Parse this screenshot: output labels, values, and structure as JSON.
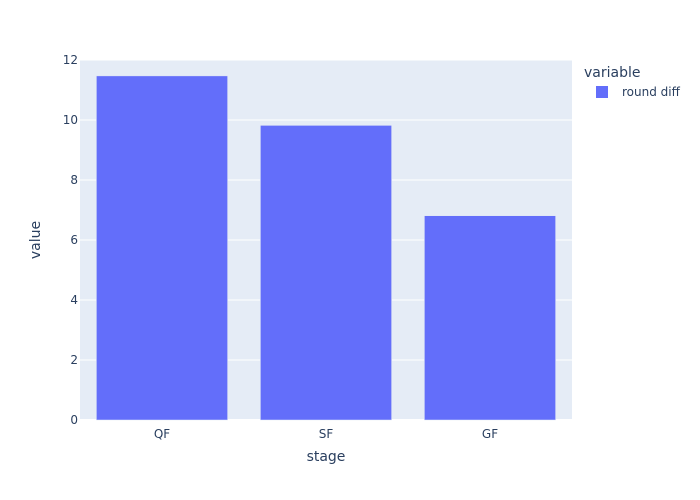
{
  "chart_data": {
    "type": "bar",
    "title": "",
    "xlabel": "stage",
    "ylabel": "value",
    "categories": [
      "QF",
      "SF",
      "GF"
    ],
    "series": [
      {
        "name": "round diff",
        "values": [
          11.47,
          9.82,
          6.81
        ],
        "color": "#636efa"
      }
    ],
    "ylim": [
      0,
      12
    ],
    "yticks": [
      0,
      2,
      4,
      6,
      8,
      10,
      12
    ],
    "grid": true,
    "legend": {
      "title": "variable",
      "position": "top-right"
    },
    "colors": {
      "plot_background": "#e5ecf6",
      "grid": "#ffffff",
      "text": "#2a3f5f"
    }
  }
}
